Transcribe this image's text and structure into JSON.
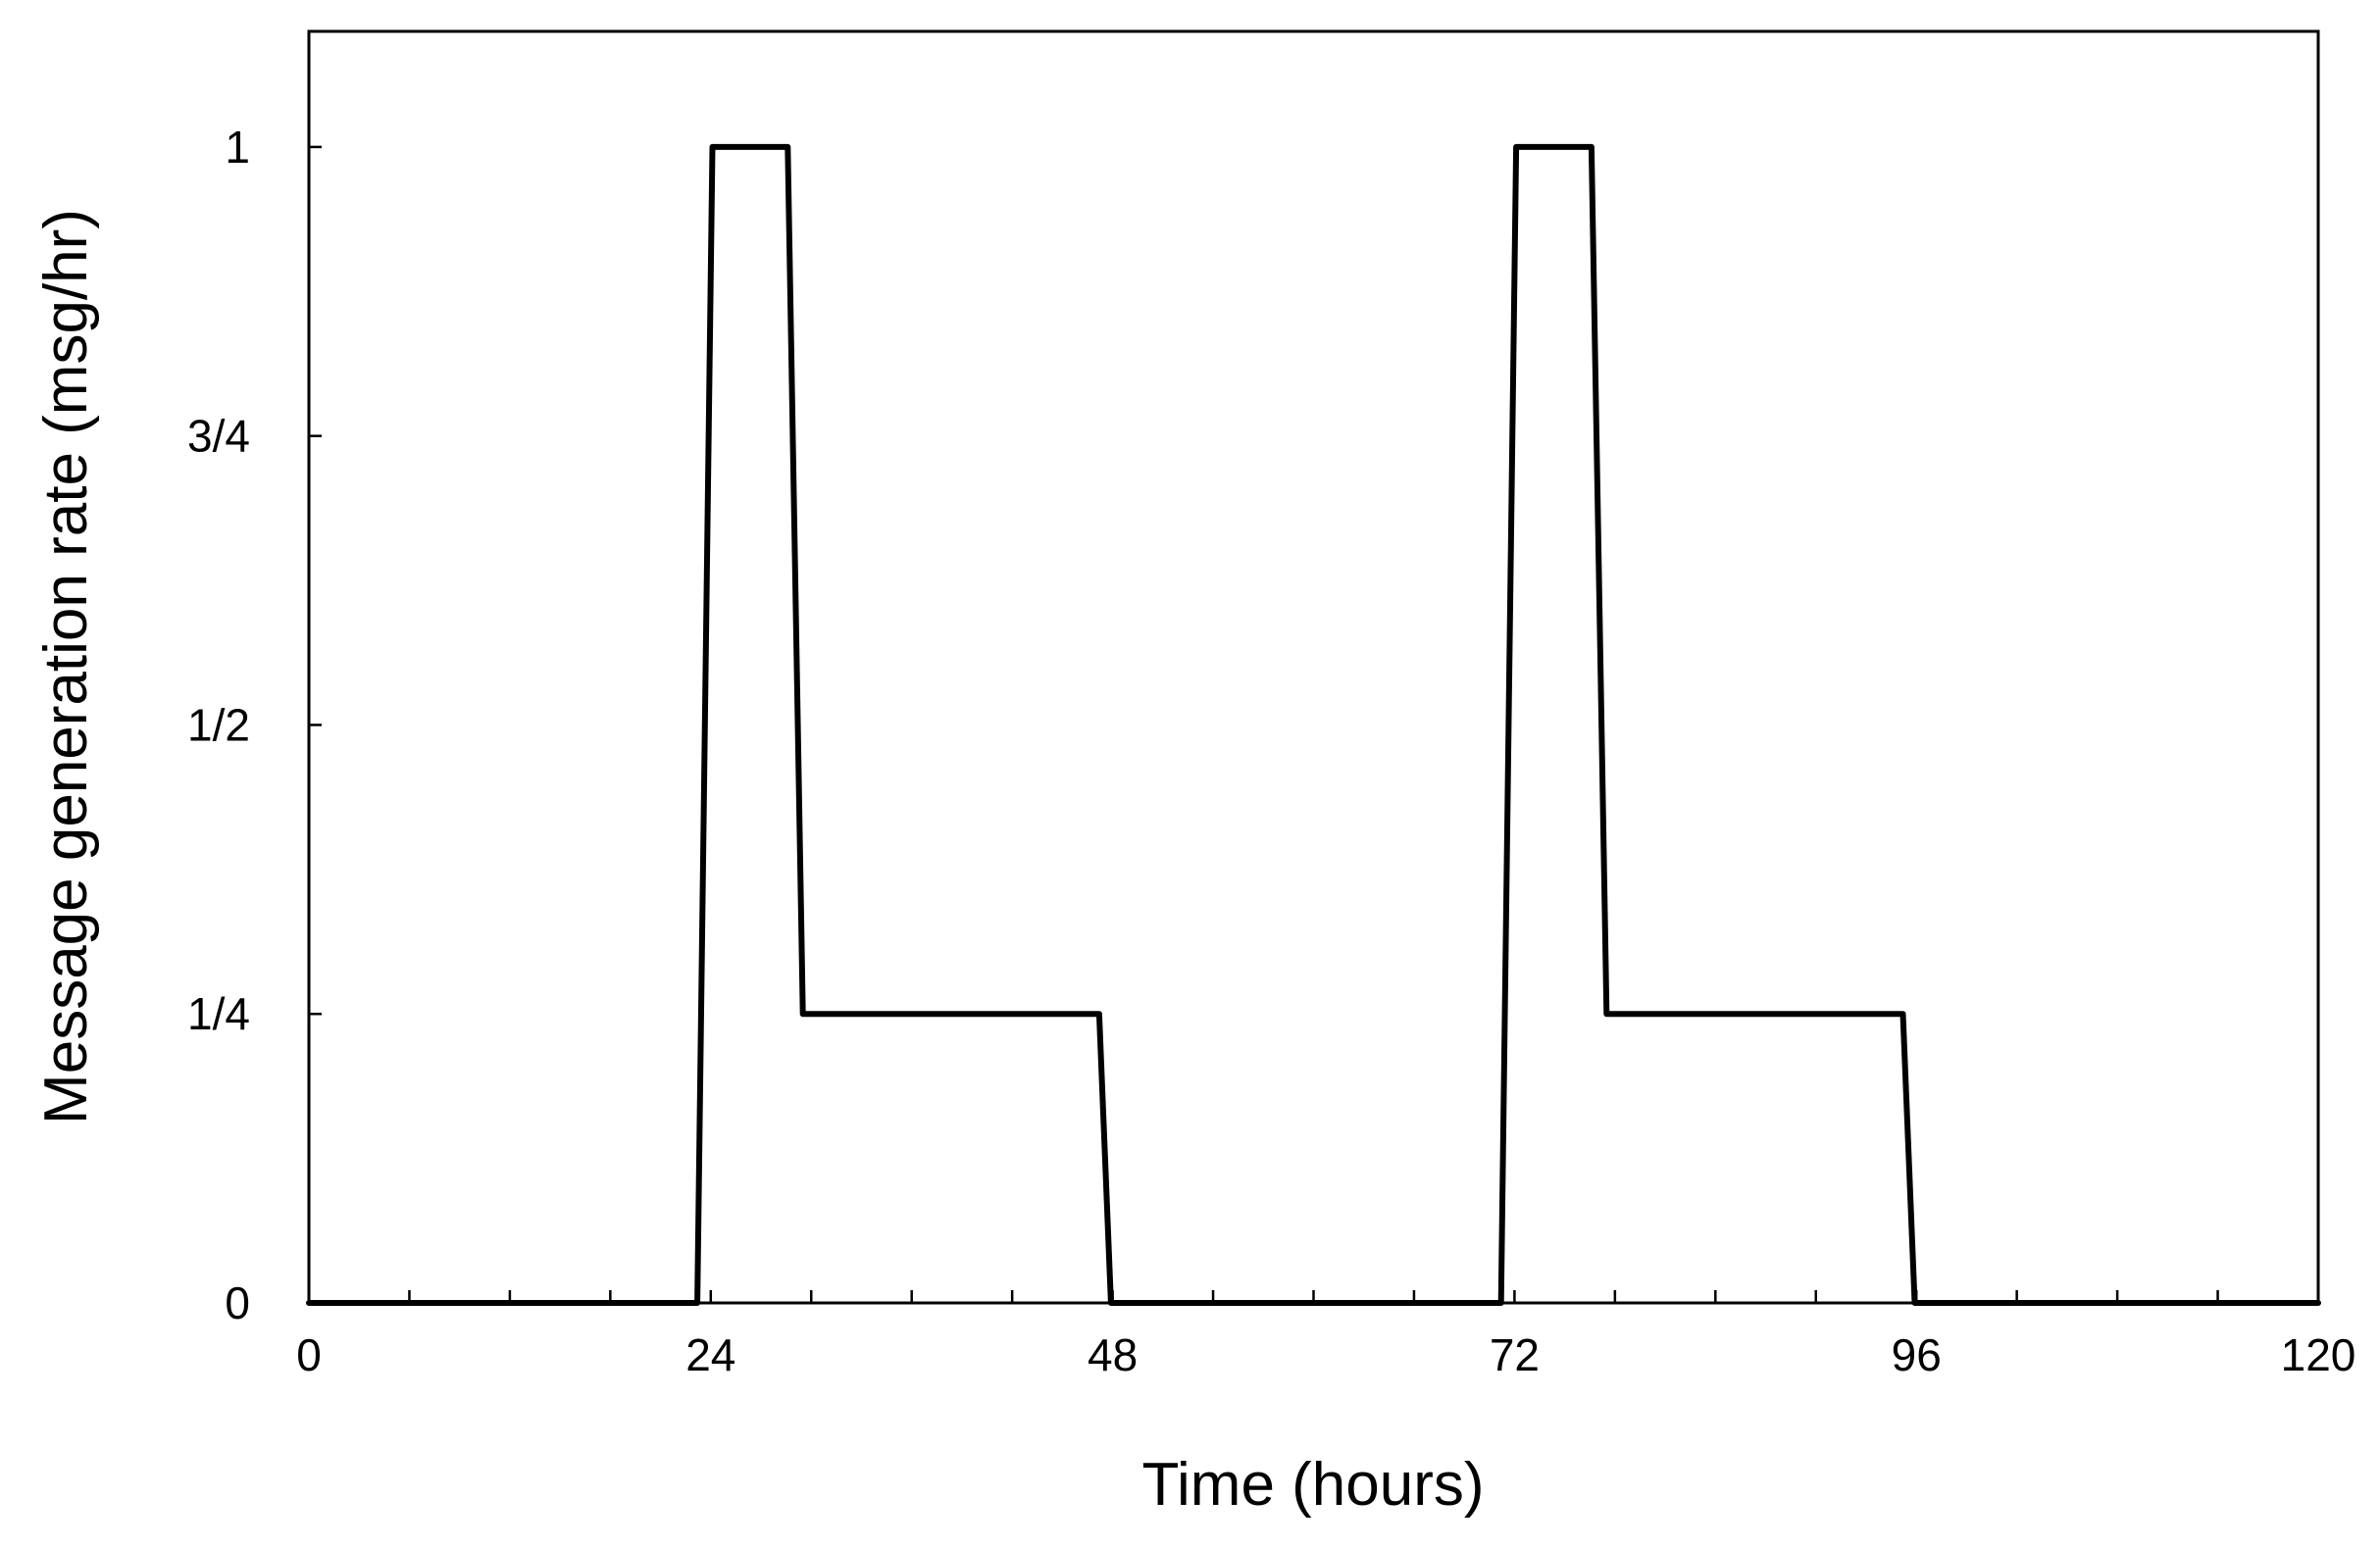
{
  "chart_data": {
    "type": "line",
    "title": "",
    "xlabel": "Time (hours)",
    "ylabel": "Message generation rate (msg/hr)",
    "xlim": [
      0,
      120
    ],
    "ylim": [
      0,
      1.1
    ],
    "grid": false,
    "legend": "none",
    "x_ticks": [
      0,
      24,
      48,
      72,
      96,
      120
    ],
    "x_tick_labels": [
      "0",
      "24",
      "48",
      "72",
      "96",
      "120"
    ],
    "x_minor_tick_step": 6,
    "y_ticks": [
      0,
      0.25,
      0.5,
      0.75,
      1
    ],
    "y_tick_labels": [
      "0",
      "1/4",
      "1/2",
      "3/4",
      "1"
    ],
    "line_color": "#000000",
    "series": [
      {
        "x": [
          0,
          22.9,
          23.2,
          24.1,
          24.5,
          28.2,
          28.6,
          29.5,
          30.2,
          30.8,
          46.9,
          47.2,
          47.9,
          48.1,
          120
        ],
        "y": [
          0,
          0,
          0,
          1,
          1,
          1,
          1,
          0.25,
          0.25,
          0.25,
          0.25,
          0.25,
          0,
          0,
          0
        ]
      }
    ]
  }
}
